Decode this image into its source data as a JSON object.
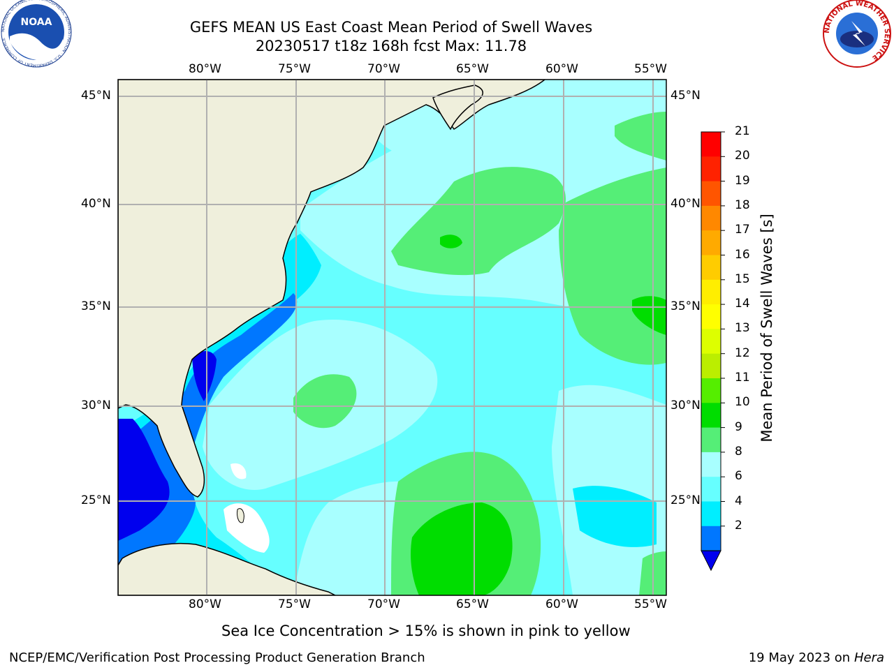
{
  "header": {
    "title_line1": "GEFS MEAN US East Coast Mean Period of Swell Waves",
    "title_line2": "20230517 t18z 168h fcst   Max: 11.78"
  },
  "map": {
    "lon_labels": [
      "80°W",
      "75°W",
      "70°W",
      "65°W",
      "60°W",
      "55°W"
    ],
    "lat_labels": [
      "45°N",
      "40°N",
      "35°N",
      "30°N",
      "25°N"
    ],
    "colors": {
      "land": "#efefdc",
      "ocean_6_8": "#66ffff",
      "ocean_8_9": "#a8ffff",
      "ocean_4_6": "#00eeff",
      "ocean_2_4": "#0077ff",
      "ocean_lt2": "#0000ee",
      "ocean_9_10": "#55ee77",
      "ocean_10_11": "#00dd00",
      "grid": "#b0b0b0"
    }
  },
  "colorbar": {
    "label": "Mean Period of Swell Waves [s]",
    "ticks": [
      "21",
      "20",
      "19",
      "18",
      "17",
      "16",
      "15",
      "14",
      "13",
      "12",
      "11",
      "10",
      "9",
      "8",
      "6",
      "4",
      "2"
    ],
    "colors": [
      "#ff0000",
      "#ff2200",
      "#ff5500",
      "#ff8800",
      "#ffaa00",
      "#ffcc00",
      "#ffee00",
      "#ffff00",
      "#ddff00",
      "#bbee00",
      "#55ee00",
      "#00dd00",
      "#55ee77",
      "#a8ffff",
      "#66ffff",
      "#00eeff",
      "#0077ff"
    ],
    "under_color": "#0000ee"
  },
  "caption": "Sea Ice Concentration > 15% is shown in pink to yellow",
  "footer": {
    "org": "NCEP/EMC/Verification Post Processing Product Generation Branch",
    "date": "19 May 2023 on",
    "machine": "Hera"
  },
  "logos": {
    "noaa_text": "NOAA",
    "noaa_ring": "NATIONAL OCEANIC AND ATMOSPHERIC ADMINISTRATION · U.S. DEPARTMENT OF COMMERCE",
    "nws_ring": "NATIONAL WEATHER SERVICE"
  }
}
